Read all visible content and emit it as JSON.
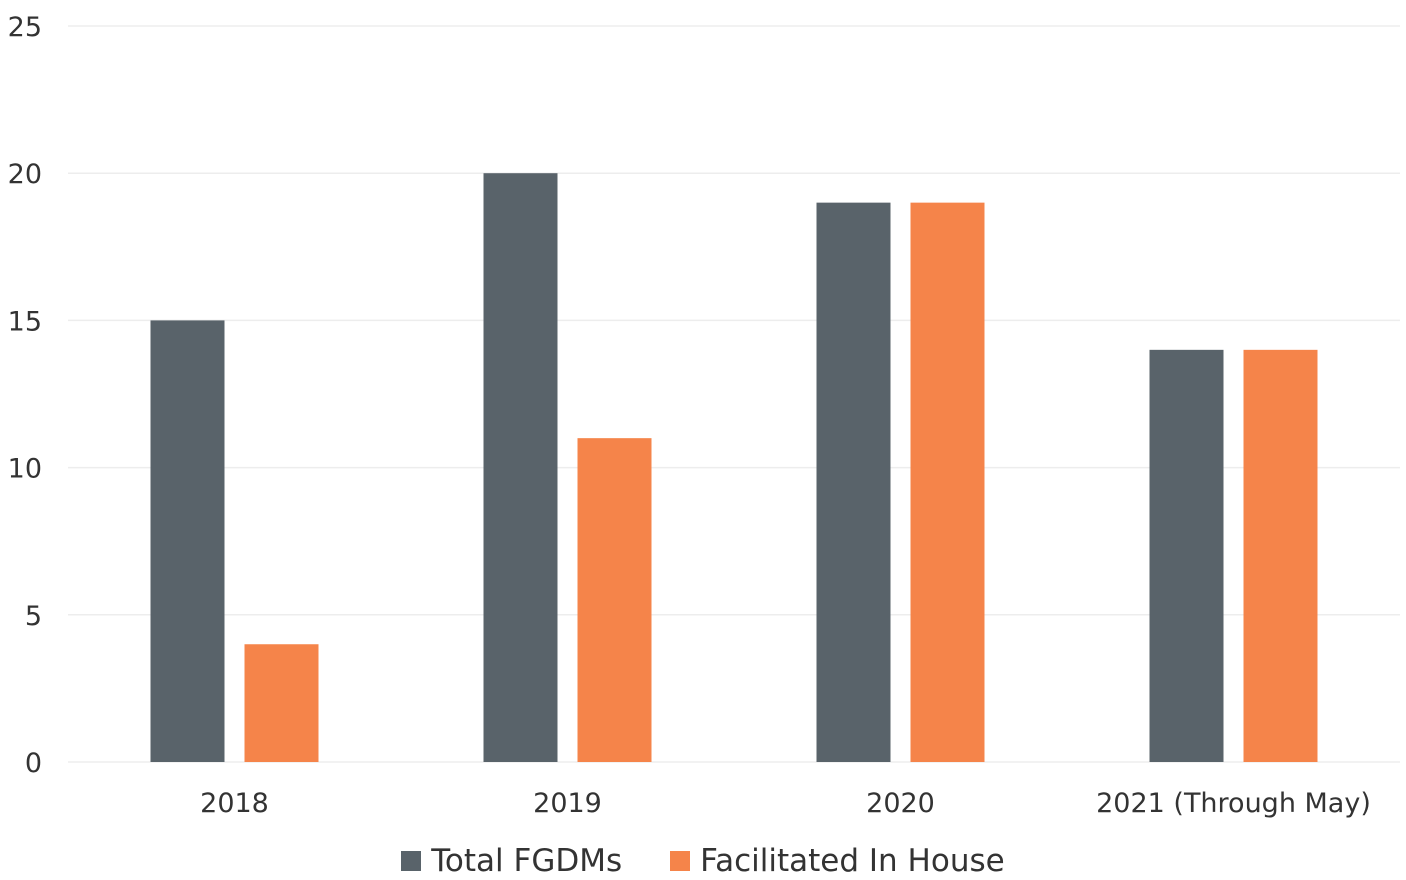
{
  "chart_data": {
    "type": "bar",
    "title": "",
    "xlabel": "",
    "ylabel": "",
    "categories": [
      "2018",
      "2019",
      "2020",
      "2021 (Through May)"
    ],
    "series": [
      {
        "name": "Total FGDMs",
        "color": "#59636a",
        "values": [
          15,
          20,
          19,
          14
        ]
      },
      {
        "name": "Facilitated In House",
        "color": "#f5844a",
        "values": [
          4,
          11,
          19,
          14
        ]
      }
    ],
    "ylim": [
      0,
      25
    ],
    "yticks": [
      0,
      5,
      10,
      15,
      20,
      25
    ],
    "grid": true,
    "legend_position": "bottom"
  }
}
